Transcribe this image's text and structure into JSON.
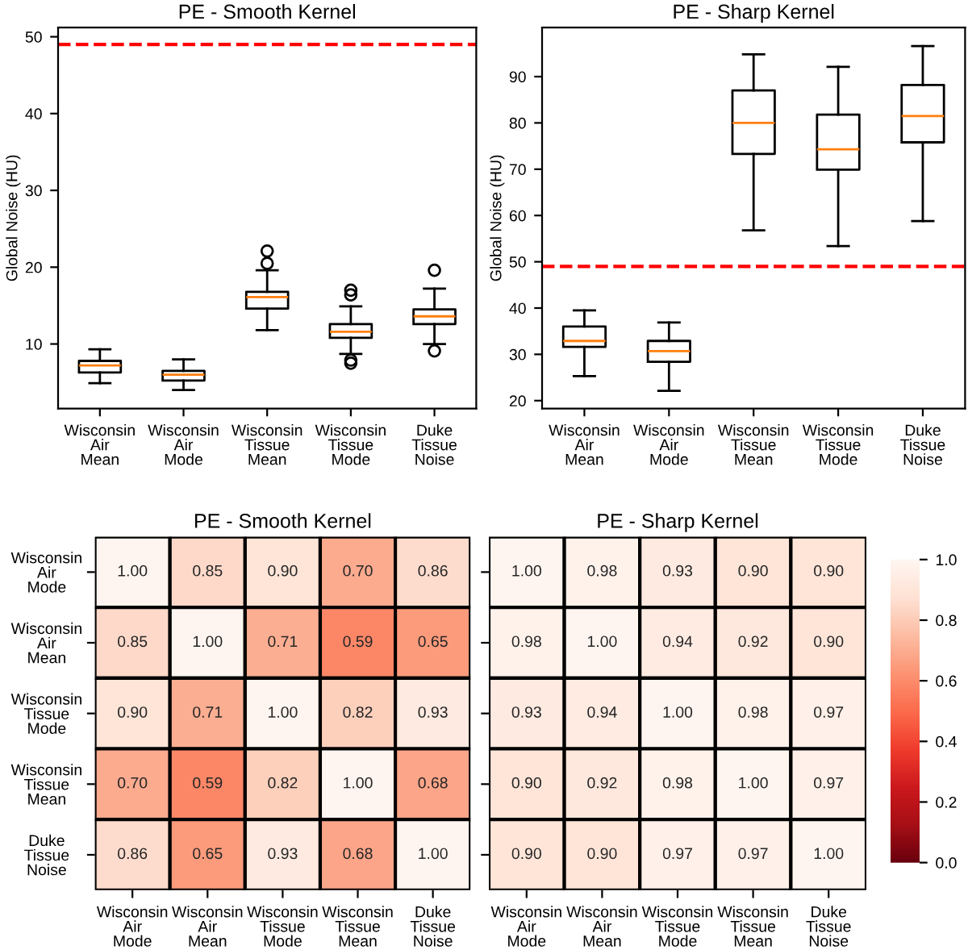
{
  "chart_data": [
    {
      "type": "box",
      "title": "PE - Smooth Kernel",
      "ylabel": "Global Noise (HU)",
      "categories": [
        "Wisconsin\nAir\nMean",
        "Wisconsin\nAir\nMode",
        "Wisconsin\nTissue\nMean",
        "Wisconsin\nTissue\nMode",
        "Duke\nTissue\nNoise"
      ],
      "boxes": [
        {
          "low": 4.9,
          "q1": 6.3,
          "median": 7.2,
          "q3": 7.8,
          "high": 9.3
        },
        {
          "low": 4.0,
          "q1": 5.25,
          "median": 6.0,
          "q3": 6.5,
          "high": 8.0
        },
        {
          "low": 11.8,
          "q1": 14.6,
          "median": 16.1,
          "q3": 16.8,
          "high": 19.6,
          "outliers": [
            22.1,
            20.5
          ]
        },
        {
          "low": 8.7,
          "q1": 10.8,
          "median": 11.6,
          "q3": 12.6,
          "high": 14.9,
          "outliers": [
            17.0,
            16.4,
            7.9,
            7.5
          ]
        },
        {
          "low": 10.0,
          "q1": 12.6,
          "median": 13.6,
          "q3": 14.5,
          "high": 17.2,
          "outliers": [
            19.6,
            9.1
          ]
        }
      ],
      "ylim": [
        1.6,
        51.2
      ],
      "yticks": [
        10,
        20,
        30,
        40,
        50
      ],
      "ref_lines": [
        {
          "axis": "y",
          "value": 49,
          "color": "#ff0000",
          "line_style": "dashed"
        }
      ]
    },
    {
      "type": "box",
      "title": "PE - Sharp Kernel",
      "ylabel": "Global Noise (HU)",
      "categories": [
        "Wisconsin\nAir\nMean",
        "Wisconsin\nAir\nMode",
        "Wisconsin\nTissue\nMean",
        "Wisconsin\nTissue\nMode",
        "Duke\nTissue\nNoise"
      ],
      "boxes": [
        {
          "low": 25.3,
          "q1": 31.6,
          "median": 32.9,
          "q3": 36.0,
          "high": 39.5
        },
        {
          "low": 22.1,
          "q1": 28.4,
          "median": 30.7,
          "q3": 32.9,
          "high": 36.9
        },
        {
          "low": 56.8,
          "q1": 73.3,
          "median": 80.0,
          "q3": 87.0,
          "high": 94.8
        },
        {
          "low": 53.4,
          "q1": 69.9,
          "median": 74.3,
          "q3": 81.8,
          "high": 92.1
        },
        {
          "low": 58.8,
          "q1": 75.8,
          "median": 81.5,
          "q3": 88.2,
          "high": 96.6
        }
      ],
      "ylim": [
        18.3,
        100.6
      ],
      "yticks": [
        20,
        30,
        40,
        50,
        60,
        70,
        80,
        90
      ],
      "ref_lines": [
        {
          "axis": "y",
          "value": 49,
          "color": "#ff0000",
          "line_style": "dashed"
        }
      ]
    },
    {
      "type": "heatmap",
      "title": "PE - Smooth Kernel",
      "categories": [
        "Wisconsin\nAir\nMode",
        "Wisconsin\nAir\nMean",
        "Wisconsin\nTissue\nMode",
        "Wisconsin\nTissue\nMean",
        "Duke\nTissue\nNoise"
      ],
      "y_categories": [
        "Wisconsin\nAir\nMode",
        "Wisconsin\nAir\nMean",
        "Wisconsin\nTissue\nMode",
        "Wisconsin\nTissue\nMean",
        "Duke\nTissue\nNoise"
      ],
      "cells": [
        [
          1.0,
          0.85,
          0.9,
          0.7,
          0.86
        ],
        [
          0.85,
          1.0,
          0.71,
          0.59,
          0.65
        ],
        [
          0.9,
          0.71,
          1.0,
          0.82,
          0.93
        ],
        [
          0.7,
          0.59,
          0.82,
          1.0,
          0.68
        ],
        [
          0.86,
          0.65,
          0.93,
          0.68,
          1.0
        ]
      ],
      "cell_labels": [
        [
          "1.00",
          "0.85",
          "0.90",
          "0.70",
          "0.86"
        ],
        [
          "0.85",
          "1.00",
          "0.71",
          "0.59",
          "0.65"
        ],
        [
          "0.90",
          "0.71",
          "1.00",
          "0.82",
          "0.93"
        ],
        [
          "0.70",
          "0.59",
          "0.82",
          "1.00",
          "0.68"
        ],
        [
          "0.86",
          "0.65",
          "0.93",
          "0.68",
          "1.00"
        ]
      ]
    },
    {
      "type": "heatmap",
      "title": "PE - Sharp Kernel",
      "categories": [
        "Wisconsin\nAir\nMode",
        "Wisconsin\nAir\nMean",
        "Wisconsin\nTissue\nMode",
        "Wisconsin\nTissue\nMean",
        "Duke\nTissue\nNoise"
      ],
      "y_categories": [
        null,
        null,
        null,
        null,
        null
      ],
      "cells": [
        [
          1.0,
          0.98,
          0.93,
          0.9,
          0.9
        ],
        [
          0.98,
          1.0,
          0.94,
          0.92,
          0.9
        ],
        [
          0.93,
          0.94,
          1.0,
          0.98,
          0.97
        ],
        [
          0.9,
          0.92,
          0.98,
          1.0,
          0.97
        ],
        [
          0.9,
          0.9,
          0.97,
          0.97,
          1.0
        ]
      ],
      "cell_labels": [
        [
          "1.00",
          "0.98",
          "0.93",
          "0.90",
          "0.90"
        ],
        [
          "0.98",
          "1.00",
          "0.94",
          "0.92",
          "0.90"
        ],
        [
          "0.93",
          "0.94",
          "1.00",
          "0.98",
          "0.97"
        ],
        [
          "0.90",
          "0.92",
          "0.98",
          "1.00",
          "0.97"
        ],
        [
          "0.90",
          "0.90",
          "0.97",
          "0.97",
          "1.00"
        ]
      ],
      "clim": [
        0,
        1
      ],
      "cticks": [
        {
          "value": 0,
          "label": "0.0"
        },
        0.2,
        0.4,
        0.6,
        0.8,
        {
          "value": 1,
          "label": "1.0"
        }
      ]
    }
  ]
}
